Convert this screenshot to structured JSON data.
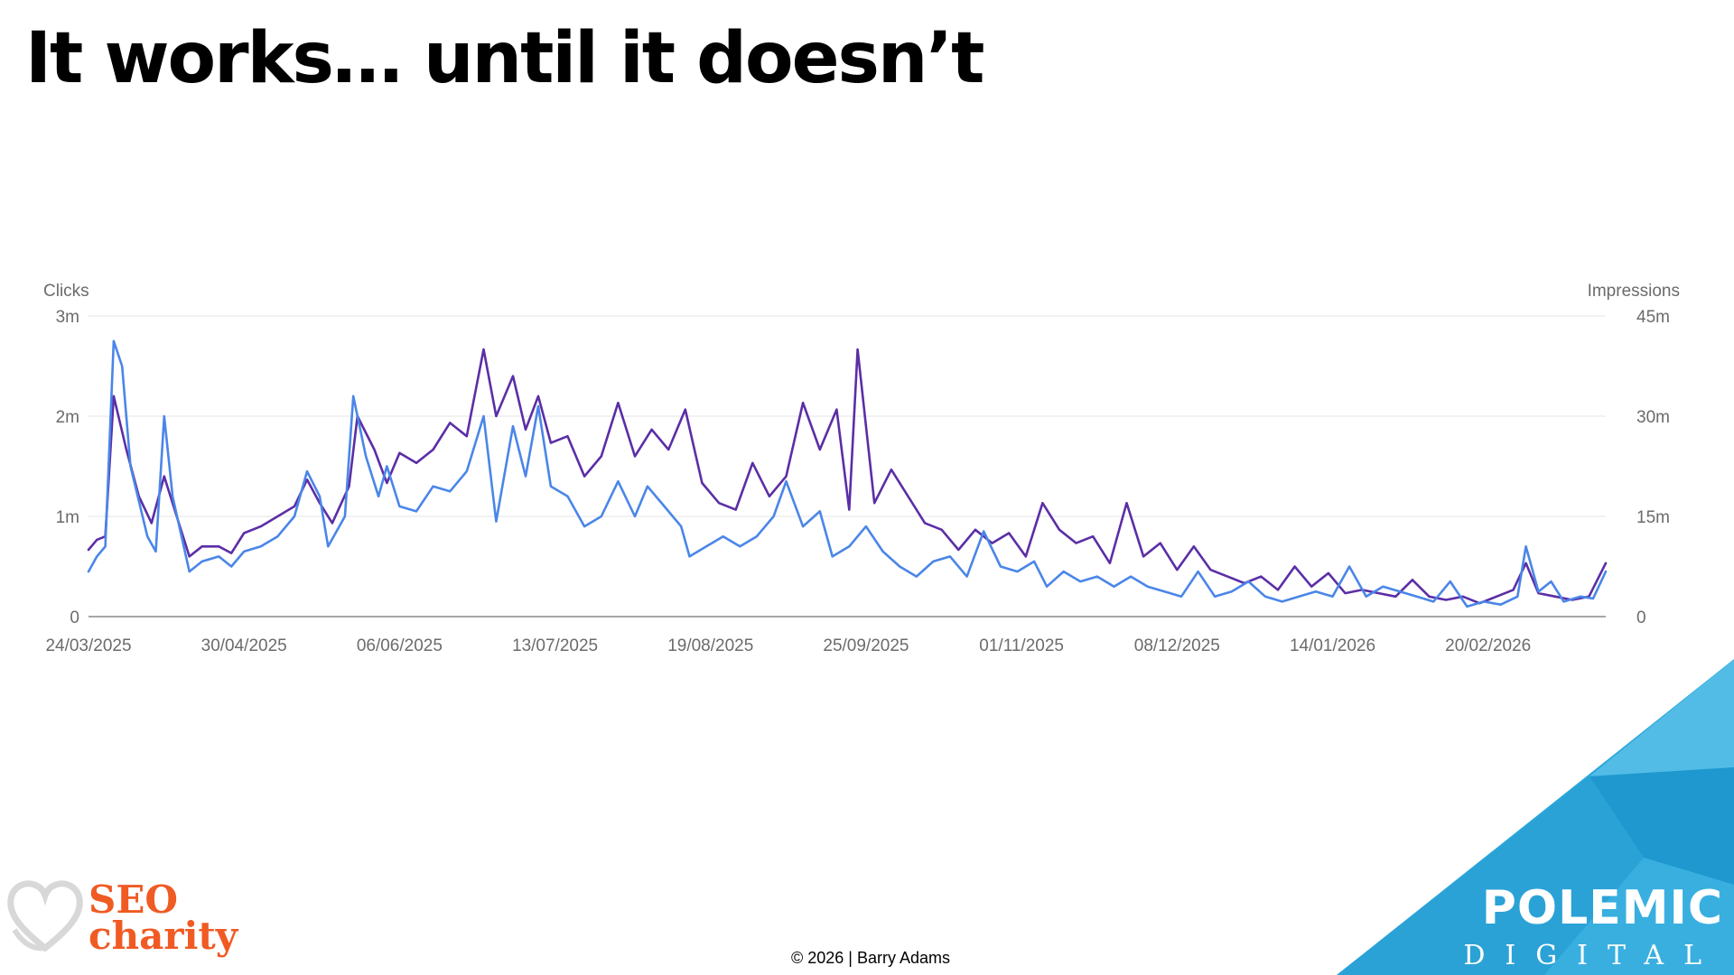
{
  "slide": {
    "title": "It works… until it doesn’t",
    "copyright": "© 2026 | Barry Adams"
  },
  "logos": {
    "seo_line1": "SEO",
    "seo_line2": "charity",
    "seo_color": "#f05a23",
    "polemic_line1": "POLEMIC",
    "polemic_line2": "DIGITAL",
    "polemic_color": "#2aa7dc"
  },
  "chart_data": {
    "type": "line",
    "title": "",
    "y_left": {
      "label": "Clicks",
      "ticks": [
        "0",
        "1m",
        "2m",
        "3m"
      ],
      "range": [
        0,
        3000000
      ]
    },
    "y_right": {
      "label": "Impressions",
      "ticks": [
        "0",
        "15m",
        "30m",
        "45m"
      ],
      "range": [
        0,
        45000000
      ]
    },
    "x_ticks": [
      "24/03/2025",
      "30/04/2025",
      "06/06/2025",
      "13/07/2025",
      "19/08/2025",
      "25/09/2025",
      "01/11/2025",
      "08/12/2025",
      "14/01/2026",
      "20/02/2026"
    ],
    "x_range": [
      "2025-03-24",
      "2026-03-20"
    ],
    "grid": true,
    "legend": "none",
    "series": [
      {
        "axis": "left",
        "color": "#4a86e8",
        "points": [
          [
            "2025-03-24",
            450000
          ],
          [
            "2025-03-26",
            600000
          ],
          [
            "2025-03-28",
            700000
          ],
          [
            "2025-03-30",
            2750000
          ],
          [
            "2025-04-01",
            2500000
          ],
          [
            "2025-04-03",
            1500000
          ],
          [
            "2025-04-07",
            800000
          ],
          [
            "2025-04-09",
            650000
          ],
          [
            "2025-04-11",
            2000000
          ],
          [
            "2025-04-13",
            1200000
          ],
          [
            "2025-04-17",
            450000
          ],
          [
            "2025-04-20",
            550000
          ],
          [
            "2025-04-24",
            600000
          ],
          [
            "2025-04-27",
            500000
          ],
          [
            "2025-04-30",
            650000
          ],
          [
            "2025-05-04",
            700000
          ],
          [
            "2025-05-08",
            800000
          ],
          [
            "2025-05-12",
            1000000
          ],
          [
            "2025-05-15",
            1450000
          ],
          [
            "2025-05-18",
            1200000
          ],
          [
            "2025-05-20",
            700000
          ],
          [
            "2025-05-24",
            1000000
          ],
          [
            "2025-05-26",
            2200000
          ],
          [
            "2025-05-29",
            1600000
          ],
          [
            "2025-06-01",
            1200000
          ],
          [
            "2025-06-03",
            1500000
          ],
          [
            "2025-06-06",
            1100000
          ],
          [
            "2025-06-10",
            1050000
          ],
          [
            "2025-06-14",
            1300000
          ],
          [
            "2025-06-18",
            1250000
          ],
          [
            "2025-06-22",
            1450000
          ],
          [
            "2025-06-26",
            2000000
          ],
          [
            "2025-06-29",
            950000
          ],
          [
            "2025-07-03",
            1900000
          ],
          [
            "2025-07-06",
            1400000
          ],
          [
            "2025-07-09",
            2100000
          ],
          [
            "2025-07-12",
            1300000
          ],
          [
            "2025-07-16",
            1200000
          ],
          [
            "2025-07-20",
            900000
          ],
          [
            "2025-07-24",
            1000000
          ],
          [
            "2025-07-28",
            1350000
          ],
          [
            "2025-08-01",
            1000000
          ],
          [
            "2025-08-04",
            1300000
          ],
          [
            "2025-08-08",
            1100000
          ],
          [
            "2025-08-12",
            900000
          ],
          [
            "2025-08-14",
            600000
          ],
          [
            "2025-08-18",
            700000
          ],
          [
            "2025-08-22",
            800000
          ],
          [
            "2025-08-26",
            700000
          ],
          [
            "2025-08-30",
            800000
          ],
          [
            "2025-09-03",
            1000000
          ],
          [
            "2025-09-06",
            1350000
          ],
          [
            "2025-09-10",
            900000
          ],
          [
            "2025-09-14",
            1050000
          ],
          [
            "2025-09-17",
            600000
          ],
          [
            "2025-09-21",
            700000
          ],
          [
            "2025-09-25",
            900000
          ],
          [
            "2025-09-29",
            650000
          ],
          [
            "2025-10-03",
            500000
          ],
          [
            "2025-10-07",
            400000
          ],
          [
            "2025-10-11",
            550000
          ],
          [
            "2025-10-15",
            600000
          ],
          [
            "2025-10-19",
            400000
          ],
          [
            "2025-10-23",
            850000
          ],
          [
            "2025-10-27",
            500000
          ],
          [
            "2025-10-31",
            450000
          ],
          [
            "2025-11-04",
            550000
          ],
          [
            "2025-11-07",
            300000
          ],
          [
            "2025-11-11",
            450000
          ],
          [
            "2025-11-15",
            350000
          ],
          [
            "2025-11-19",
            400000
          ],
          [
            "2025-11-23",
            300000
          ],
          [
            "2025-11-27",
            400000
          ],
          [
            "2025-12-01",
            300000
          ],
          [
            "2025-12-05",
            250000
          ],
          [
            "2025-12-09",
            200000
          ],
          [
            "2025-12-13",
            450000
          ],
          [
            "2025-12-17",
            200000
          ],
          [
            "2025-12-21",
            250000
          ],
          [
            "2025-12-25",
            350000
          ],
          [
            "2025-12-29",
            200000
          ],
          [
            "2026-01-02",
            150000
          ],
          [
            "2026-01-06",
            200000
          ],
          [
            "2026-01-10",
            250000
          ],
          [
            "2026-01-14",
            200000
          ],
          [
            "2026-01-18",
            500000
          ],
          [
            "2026-01-22",
            200000
          ],
          [
            "2026-01-26",
            300000
          ],
          [
            "2026-01-30",
            250000
          ],
          [
            "2026-02-03",
            200000
          ],
          [
            "2026-02-07",
            150000
          ],
          [
            "2026-02-11",
            350000
          ],
          [
            "2026-02-15",
            100000
          ],
          [
            "2026-02-19",
            150000
          ],
          [
            "2026-02-23",
            120000
          ],
          [
            "2026-02-27",
            200000
          ],
          [
            "2026-03-01",
            700000
          ],
          [
            "2026-03-04",
            250000
          ],
          [
            "2026-03-07",
            350000
          ],
          [
            "2026-03-10",
            150000
          ],
          [
            "2026-03-14",
            200000
          ],
          [
            "2026-03-17",
            180000
          ],
          [
            "2026-03-20",
            450000
          ]
        ]
      },
      {
        "axis": "right",
        "color": "#5b2ea6",
        "points": [
          [
            "2025-03-24",
            10000000
          ],
          [
            "2025-03-26",
            11500000
          ],
          [
            "2025-03-28",
            12000000
          ],
          [
            "2025-03-30",
            33000000
          ],
          [
            "2025-04-02",
            25000000
          ],
          [
            "2025-04-05",
            18000000
          ],
          [
            "2025-04-08",
            14000000
          ],
          [
            "2025-04-11",
            21000000
          ],
          [
            "2025-04-14",
            15000000
          ],
          [
            "2025-04-17",
            9000000
          ],
          [
            "2025-04-20",
            10500000
          ],
          [
            "2025-04-24",
            10500000
          ],
          [
            "2025-04-27",
            9500000
          ],
          [
            "2025-04-30",
            12500000
          ],
          [
            "2025-05-04",
            13500000
          ],
          [
            "2025-05-08",
            15000000
          ],
          [
            "2025-05-12",
            16500000
          ],
          [
            "2025-05-15",
            20500000
          ],
          [
            "2025-05-18",
            17000000
          ],
          [
            "2025-05-21",
            14000000
          ],
          [
            "2025-05-25",
            19500000
          ],
          [
            "2025-05-27",
            30000000
          ],
          [
            "2025-05-31",
            25000000
          ],
          [
            "2025-06-03",
            20000000
          ],
          [
            "2025-06-06",
            24500000
          ],
          [
            "2025-06-10",
            23000000
          ],
          [
            "2025-06-14",
            25000000
          ],
          [
            "2025-06-18",
            29000000
          ],
          [
            "2025-06-22",
            27000000
          ],
          [
            "2025-06-26",
            40000000
          ],
          [
            "2025-06-29",
            30000000
          ],
          [
            "2025-07-03",
            36000000
          ],
          [
            "2025-07-06",
            28000000
          ],
          [
            "2025-07-09",
            33000000
          ],
          [
            "2025-07-12",
            26000000
          ],
          [
            "2025-07-16",
            27000000
          ],
          [
            "2025-07-20",
            21000000
          ],
          [
            "2025-07-24",
            24000000
          ],
          [
            "2025-07-28",
            32000000
          ],
          [
            "2025-08-01",
            24000000
          ],
          [
            "2025-08-05",
            28000000
          ],
          [
            "2025-08-09",
            25000000
          ],
          [
            "2025-08-13",
            31000000
          ],
          [
            "2025-08-17",
            20000000
          ],
          [
            "2025-08-21",
            17000000
          ],
          [
            "2025-08-25",
            16000000
          ],
          [
            "2025-08-29",
            23000000
          ],
          [
            "2025-09-02",
            18000000
          ],
          [
            "2025-09-06",
            21000000
          ],
          [
            "2025-09-10",
            32000000
          ],
          [
            "2025-09-14",
            25000000
          ],
          [
            "2025-09-18",
            31000000
          ],
          [
            "2025-09-21",
            16000000
          ],
          [
            "2025-09-23",
            40000000
          ],
          [
            "2025-09-27",
            17000000
          ],
          [
            "2025-10-01",
            22000000
          ],
          [
            "2025-10-05",
            18000000
          ],
          [
            "2025-10-09",
            14000000
          ],
          [
            "2025-10-13",
            13000000
          ],
          [
            "2025-10-17",
            10000000
          ],
          [
            "2025-10-21",
            13000000
          ],
          [
            "2025-10-25",
            11000000
          ],
          [
            "2025-10-29",
            12500000
          ],
          [
            "2025-11-02",
            9000000
          ],
          [
            "2025-11-06",
            17000000
          ],
          [
            "2025-11-10",
            13000000
          ],
          [
            "2025-11-14",
            11000000
          ],
          [
            "2025-11-18",
            12000000
          ],
          [
            "2025-11-22",
            8000000
          ],
          [
            "2025-11-26",
            17000000
          ],
          [
            "2025-11-30",
            9000000
          ],
          [
            "2025-12-04",
            11000000
          ],
          [
            "2025-12-08",
            7000000
          ],
          [
            "2025-12-12",
            10500000
          ],
          [
            "2025-12-16",
            7000000
          ],
          [
            "2025-12-20",
            6000000
          ],
          [
            "2025-12-24",
            5000000
          ],
          [
            "2025-12-28",
            6000000
          ],
          [
            "2026-01-01",
            4000000
          ],
          [
            "2026-01-05",
            7500000
          ],
          [
            "2026-01-09",
            4500000
          ],
          [
            "2026-01-13",
            6500000
          ],
          [
            "2026-01-17",
            3500000
          ],
          [
            "2026-01-21",
            4000000
          ],
          [
            "2026-01-25",
            3500000
          ],
          [
            "2026-01-29",
            3000000
          ],
          [
            "2026-02-02",
            5500000
          ],
          [
            "2026-02-06",
            3000000
          ],
          [
            "2026-02-10",
            2500000
          ],
          [
            "2026-02-14",
            3000000
          ],
          [
            "2026-02-18",
            2000000
          ],
          [
            "2026-02-22",
            3000000
          ],
          [
            "2026-02-26",
            4000000
          ],
          [
            "2026-03-01",
            8000000
          ],
          [
            "2026-03-04",
            3500000
          ],
          [
            "2026-03-08",
            3000000
          ],
          [
            "2026-03-12",
            2500000
          ],
          [
            "2026-03-16",
            3000000
          ],
          [
            "2026-03-20",
            8000000
          ]
        ]
      }
    ]
  }
}
